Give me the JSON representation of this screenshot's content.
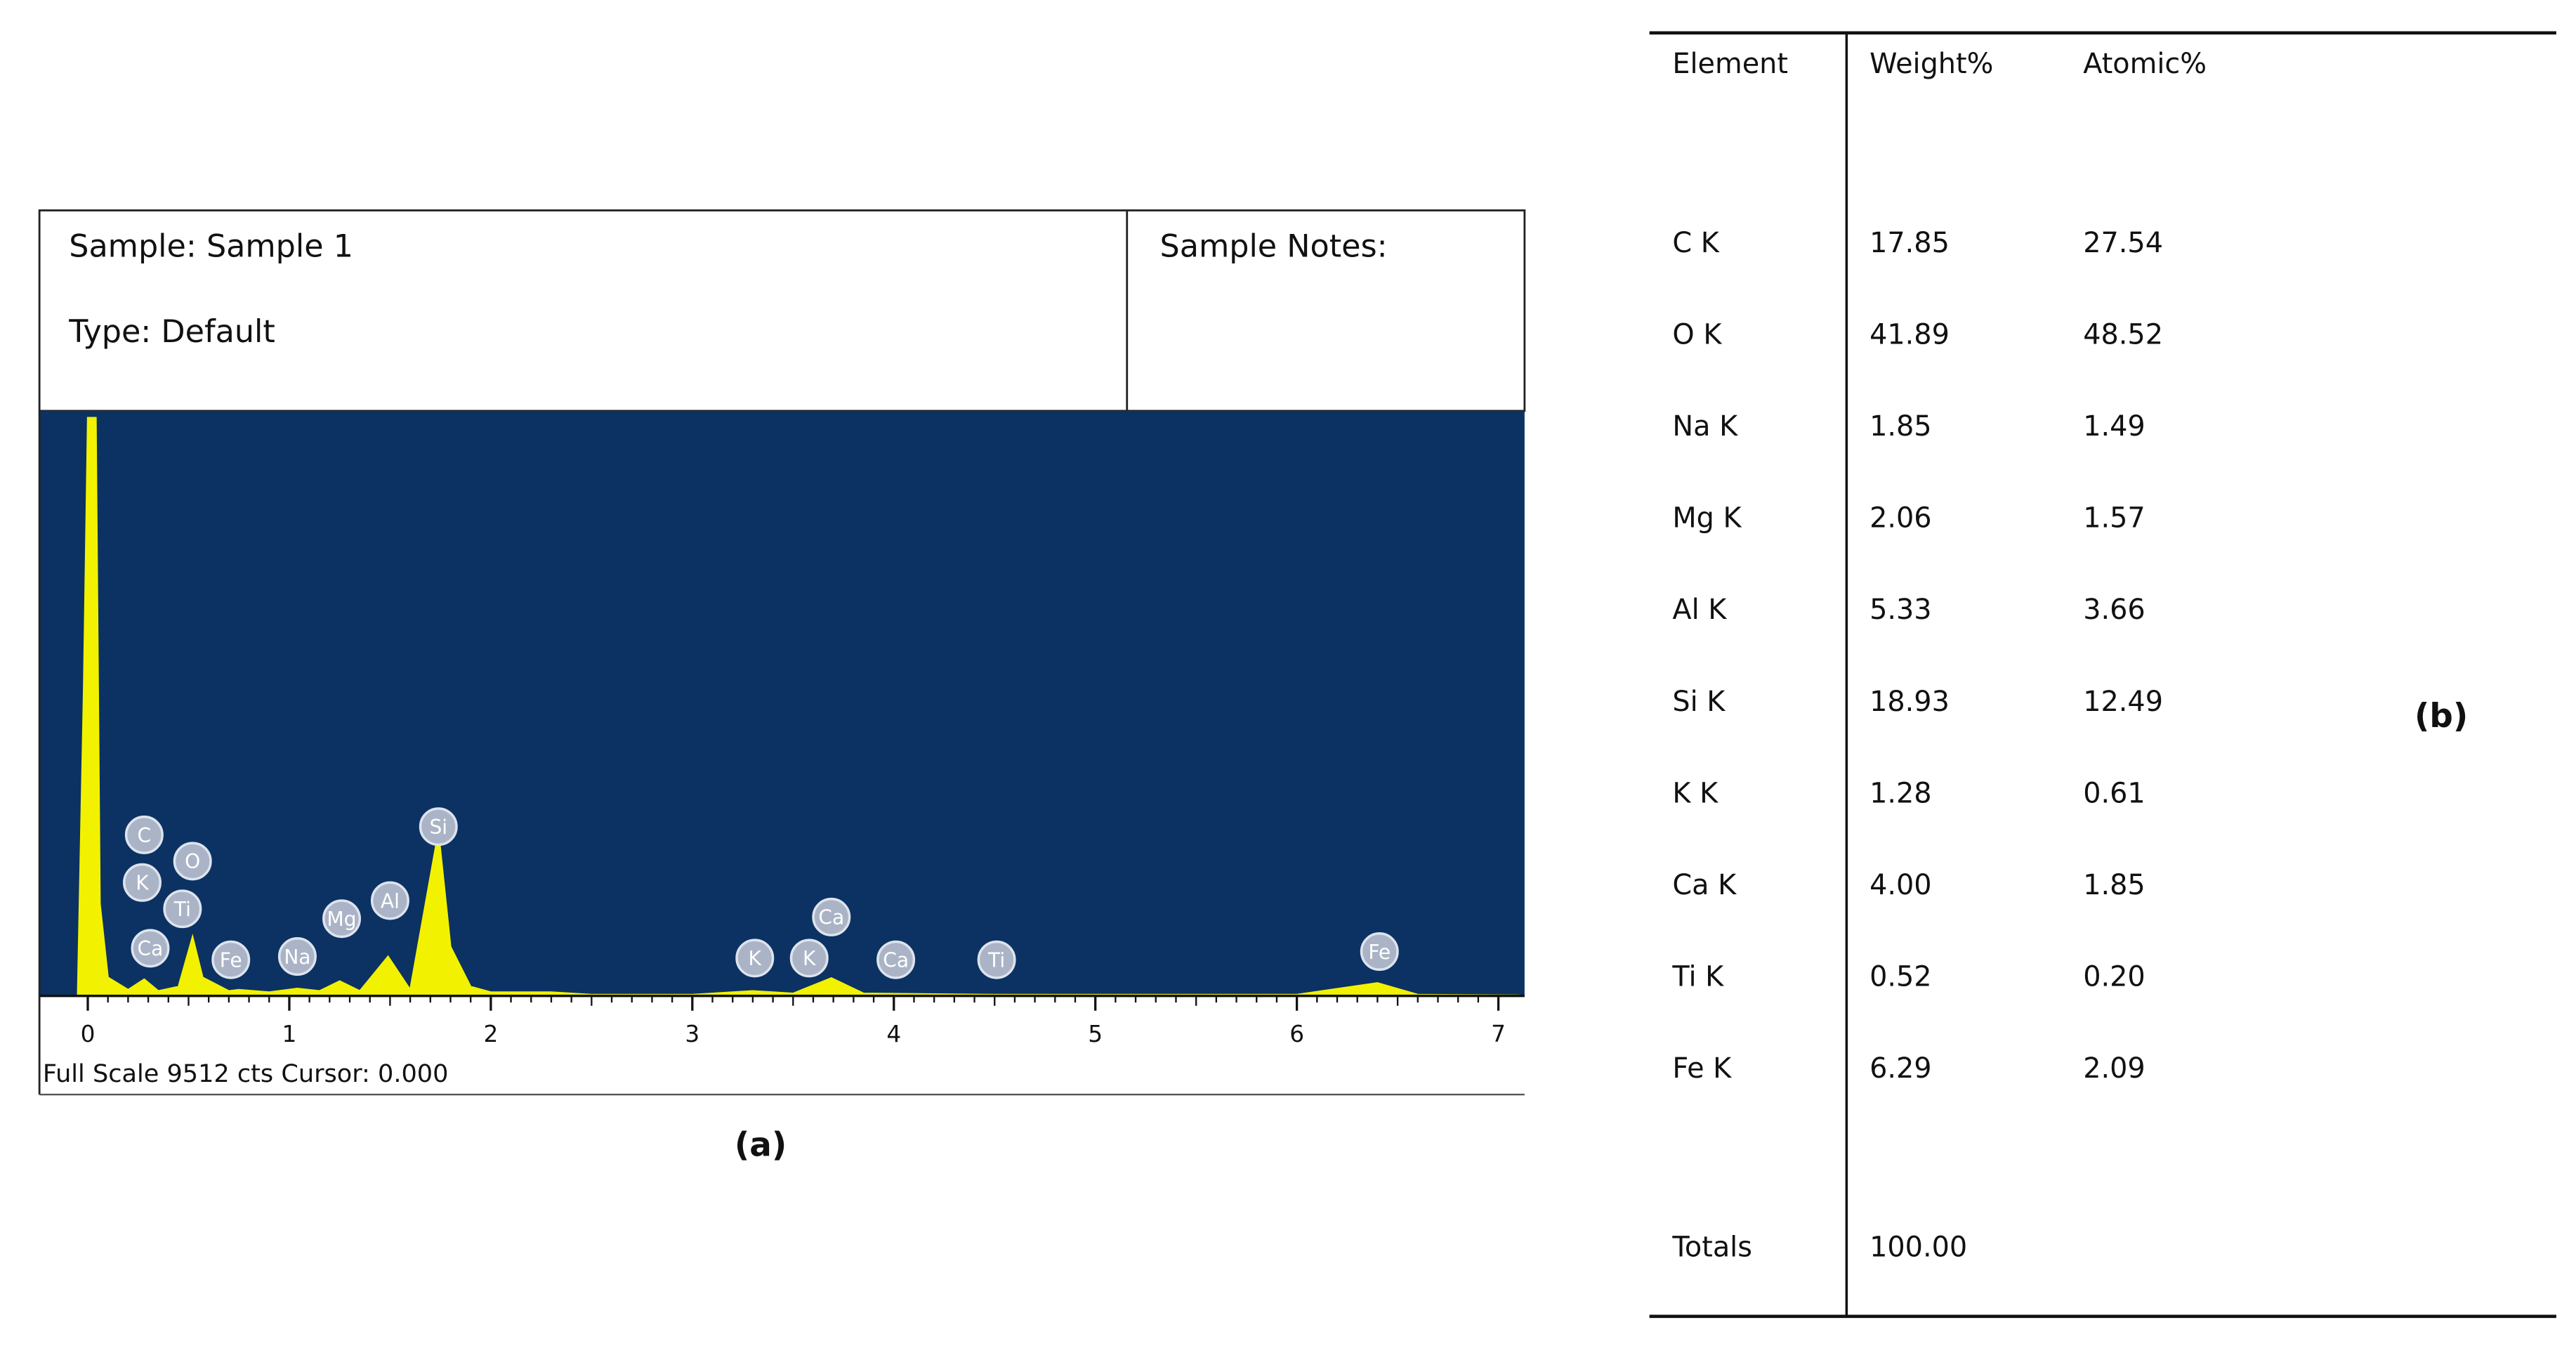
{
  "chart_data": {
    "type": "area",
    "header": {
      "sample": "Sample: Sample 1",
      "sample_type": "Type: Default",
      "notes": "Sample Notes:"
    },
    "footer": "Full Scale 9512 cts Cursor: 0.000",
    "caption": "(a)",
    "color": "#f2f200",
    "background": "#0b3262",
    "x": [
      -0.05,
      -0.02,
      0.0,
      0.04,
      0.06,
      0.1,
      0.2,
      0.28,
      0.35,
      0.45,
      0.52,
      0.57,
      0.7,
      0.75,
      0.9,
      1.04,
      1.15,
      1.25,
      1.35,
      1.49,
      1.6,
      1.74,
      1.8,
      1.9,
      2.0,
      2.3,
      2.5,
      3.0,
      3.3,
      3.5,
      3.69,
      3.85,
      4.5,
      6.0,
      6.4,
      6.6,
      7.1
    ],
    "values": [
      0,
      5000,
      9400,
      9400,
      1500,
      300,
      100,
      270,
      80,
      150,
      960,
      300,
      80,
      100,
      60,
      120,
      80,
      240,
      80,
      640,
      100,
      2670,
      800,
      150,
      60,
      60,
      20,
      20,
      80,
      40,
      290,
      40,
      20,
      20,
      210,
      20,
      10
    ],
    "xlim": [
      -0.24,
      7.13
    ],
    "ylim": [
      0,
      9512
    ],
    "xticks": [
      0,
      1,
      2,
      3,
      4,
      5,
      6,
      7
    ],
    "peak_labels": [
      {
        "text": "C",
        "x": 0.28
      },
      {
        "text": "K",
        "x": 0.27
      },
      {
        "text": "O",
        "x": 0.52
      },
      {
        "text": "Ti",
        "x": 0.47
      },
      {
        "text": "Ca",
        "x": 0.31
      },
      {
        "text": "Fe",
        "x": 0.71
      },
      {
        "text": "Na",
        "x": 1.04
      },
      {
        "text": "Mg",
        "x": 1.26
      },
      {
        "text": "Al",
        "x": 1.5
      },
      {
        "text": "Si",
        "x": 1.74
      },
      {
        "text": "K",
        "x": 3.31
      },
      {
        "text": "K",
        "x": 3.58
      },
      {
        "text": "Ca",
        "x": 3.69
      },
      {
        "text": "Ca",
        "x": 4.01
      },
      {
        "text": "Ti",
        "x": 4.51
      },
      {
        "text": "Fe",
        "x": 6.41
      }
    ]
  },
  "table": {
    "header": [
      "Element",
      "Weight%",
      "Atomic%"
    ],
    "rows": [
      [
        "C K",
        "17.85",
        "27.54"
      ],
      [
        "O K",
        "41.89",
        "48.52"
      ],
      [
        "Na K",
        "1.85",
        "1.49"
      ],
      [
        "Mg K",
        "2.06",
        "1.57"
      ],
      [
        "Al K",
        "5.33",
        "3.66"
      ],
      [
        "Si K",
        "18.93",
        "12.49"
      ],
      [
        "K K",
        "1.28",
        "0.61"
      ],
      [
        "Ca K",
        "4.00",
        "1.85"
      ],
      [
        "Ti K",
        "0.52",
        "0.20"
      ],
      [
        "Fe K",
        "6.29",
        "2.09"
      ]
    ],
    "totals": [
      "Totals",
      "100.00"
    ],
    "caption": "(b)"
  }
}
